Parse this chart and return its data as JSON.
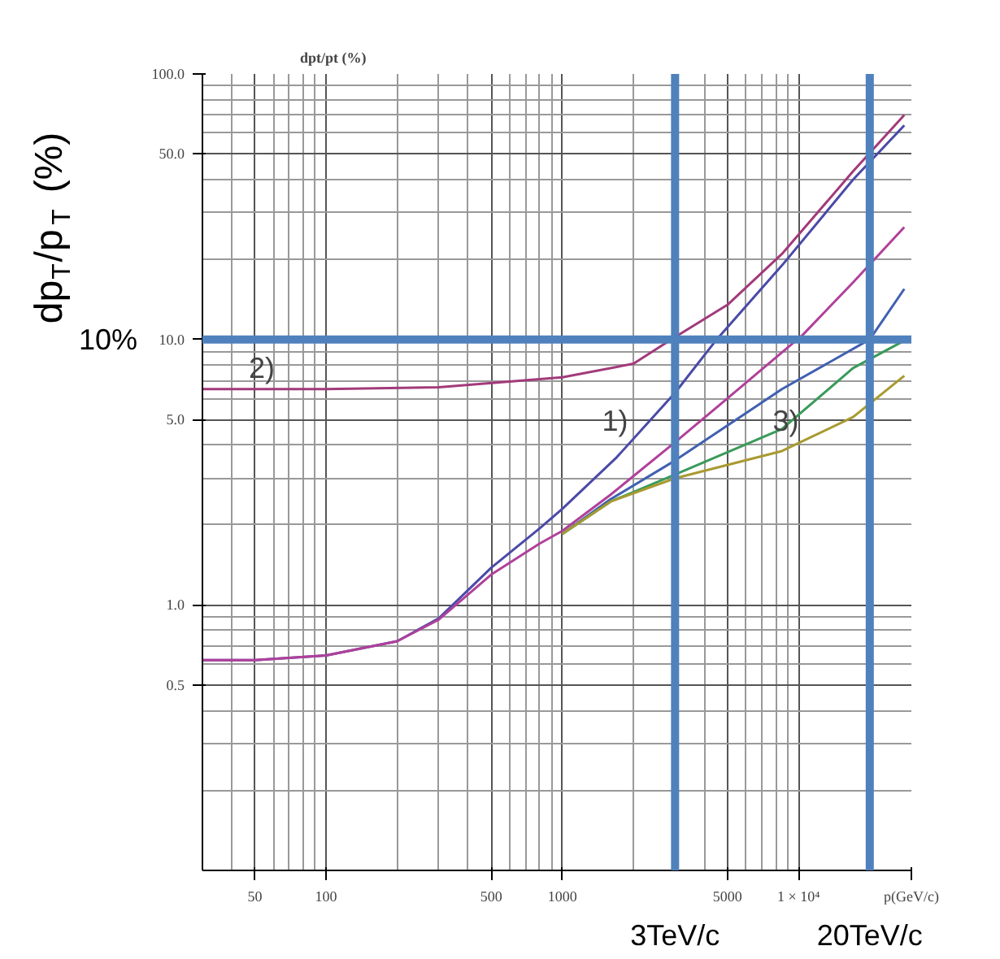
{
  "chart_data": {
    "type": "line",
    "ylabel": "dp$_{T}$/p$_{T}$ (%)",
    "xlabel": "p(GeV/c)",
    "log": "xy",
    "grid": true,
    "xlim": [
      30,
      30000
    ],
    "ylim": [
      0.1,
      100
    ],
    "xticks": [
      50,
      100,
      500,
      1000,
      5000,
      {
        "value": 10000,
        "label": "1 × 10⁴"
      }
    ],
    "yticks": [
      0.5,
      {
        "value": 1,
        "label": "1.0"
      },
      {
        "value": 5,
        "label": "5.0"
      },
      {
        "value": 10,
        "label": "10.0"
      },
      {
        "value": 50,
        "label": "50.0"
      },
      {
        "value": 100,
        "label": "100.0"
      }
    ],
    "series": [
      {
        "color": "#a23a7a",
        "x": [
          30,
          100,
          300,
          1000,
          2000,
          3000,
          5000,
          8500,
          17000,
          28000
        ],
        "values": [
          6.5,
          6.5,
          6.6,
          7.2,
          8.1,
          10.2,
          13.5,
          21,
          43,
          70
        ]
      },
      {
        "color": "#4a4aa8",
        "x": [
          30,
          50,
          100,
          200,
          300,
          500,
          800,
          1000,
          1700,
          3000,
          4500,
          8500,
          17000,
          28000
        ],
        "values": [
          0.62,
          0.62,
          0.645,
          0.73,
          0.89,
          1.38,
          1.94,
          2.3,
          3.6,
          6.3,
          10,
          19,
          40,
          64
        ]
      },
      {
        "color": "#b0409a",
        "x": [
          30,
          50,
          100,
          200,
          300,
          500,
          800,
          1000,
          1600,
          3000,
          5000,
          10400,
          17000,
          28000
        ],
        "values": [
          0.62,
          0.62,
          0.645,
          0.73,
          0.88,
          1.3,
          1.7,
          1.9,
          2.6,
          4.1,
          6.0,
          10.4,
          16.4,
          26.5
        ]
      },
      {
        "color": "#4060b0",
        "x": [
          1000,
          1600,
          3000,
          8500,
          20000,
          28000
        ],
        "values": [
          1.85,
          2.5,
          3.5,
          6.5,
          10,
          15.5
        ]
      },
      {
        "color": "#3a9a5a",
        "x": [
          1000,
          1600,
          3000,
          8500,
          17000,
          28000
        ],
        "values": [
          1.85,
          2.45,
          3.1,
          4.6,
          7.8,
          9.9
        ]
      },
      {
        "color": "#a89a30",
        "x": [
          1000,
          1600,
          3000,
          8500,
          17000,
          28000
        ],
        "values": [
          1.85,
          2.45,
          3.0,
          3.8,
          5.1,
          7.3
        ]
      }
    ],
    "ref_lines": [
      {
        "axis": "x",
        "value": 3000,
        "label": "3TeV/c",
        "color": "#4f81bd"
      },
      {
        "axis": "x",
        "value": 20000,
        "label": "20TeV/c",
        "color": "#4f81bd"
      },
      {
        "axis": "y",
        "value": 10,
        "label": "10%",
        "color": "#4f81bd"
      }
    ],
    "annotations": [
      "dpt/pt (%)",
      {
        "text": "1)",
        "x": 1780,
        "y": 4.1
      },
      {
        "text": "2)",
        "x": 57,
        "y": 6.5
      },
      {
        "text": "3)",
        "x": 9400,
        "y": 4.1
      }
    ]
  }
}
